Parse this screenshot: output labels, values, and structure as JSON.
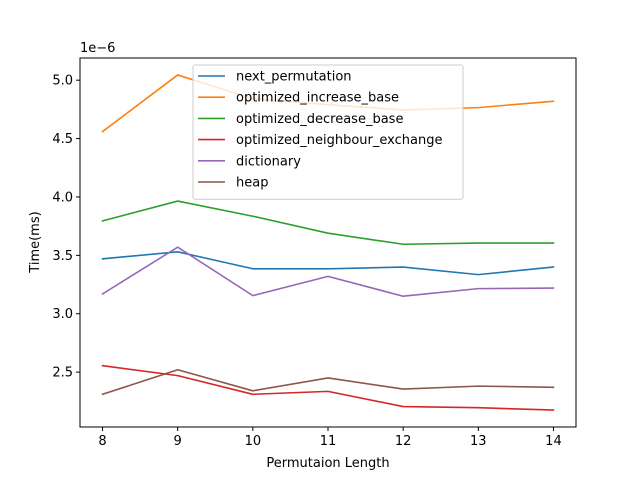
{
  "chart_data": {
    "type": "line",
    "title": "",
    "xlabel": "Permutaion Length",
    "ylabel": "Time(ms)",
    "y_multiplier_label": "1e−6",
    "x": [
      8,
      9,
      10,
      11,
      12,
      13,
      14
    ],
    "xlim": [
      7.7,
      14.3
    ],
    "ylim": [
      2.03,
      5.19
    ],
    "x_ticks": [
      8,
      9,
      10,
      11,
      12,
      13,
      14
    ],
    "y_ticks": [
      2.5,
      3.0,
      3.5,
      4.0,
      4.5,
      5.0
    ],
    "y_tick_labels": [
      "2.5",
      "3.0",
      "3.5",
      "4.0",
      "4.5",
      "5.0"
    ],
    "grid": false,
    "legend_position": "upper-center",
    "series": [
      {
        "name": "next_permutation",
        "color": "#1f77b4",
        "values": [
          3.47,
          3.53,
          3.385,
          3.385,
          3.4,
          3.335,
          3.4
        ]
      },
      {
        "name": "optimized_increase_base",
        "color": "#ff7f0e",
        "values": [
          4.56,
          5.045,
          4.84,
          4.79,
          4.745,
          4.765,
          4.82
        ]
      },
      {
        "name": "optimized_decrease_base",
        "color": "#2ca02c",
        "values": [
          3.795,
          3.965,
          3.835,
          3.69,
          3.595,
          3.605,
          3.605
        ]
      },
      {
        "name": "optimized_neighbour_exchange",
        "color": "#d62728",
        "values": [
          2.555,
          2.47,
          2.31,
          2.335,
          2.205,
          2.195,
          2.175
        ]
      },
      {
        "name": "dictionary",
        "color": "#9467bd",
        "values": [
          3.17,
          3.57,
          3.155,
          3.32,
          3.15,
          3.215,
          3.22
        ]
      },
      {
        "name": "heap",
        "color": "#8c564b",
        "values": [
          2.31,
          2.52,
          2.34,
          2.45,
          2.355,
          2.38,
          2.37
        ]
      }
    ]
  }
}
